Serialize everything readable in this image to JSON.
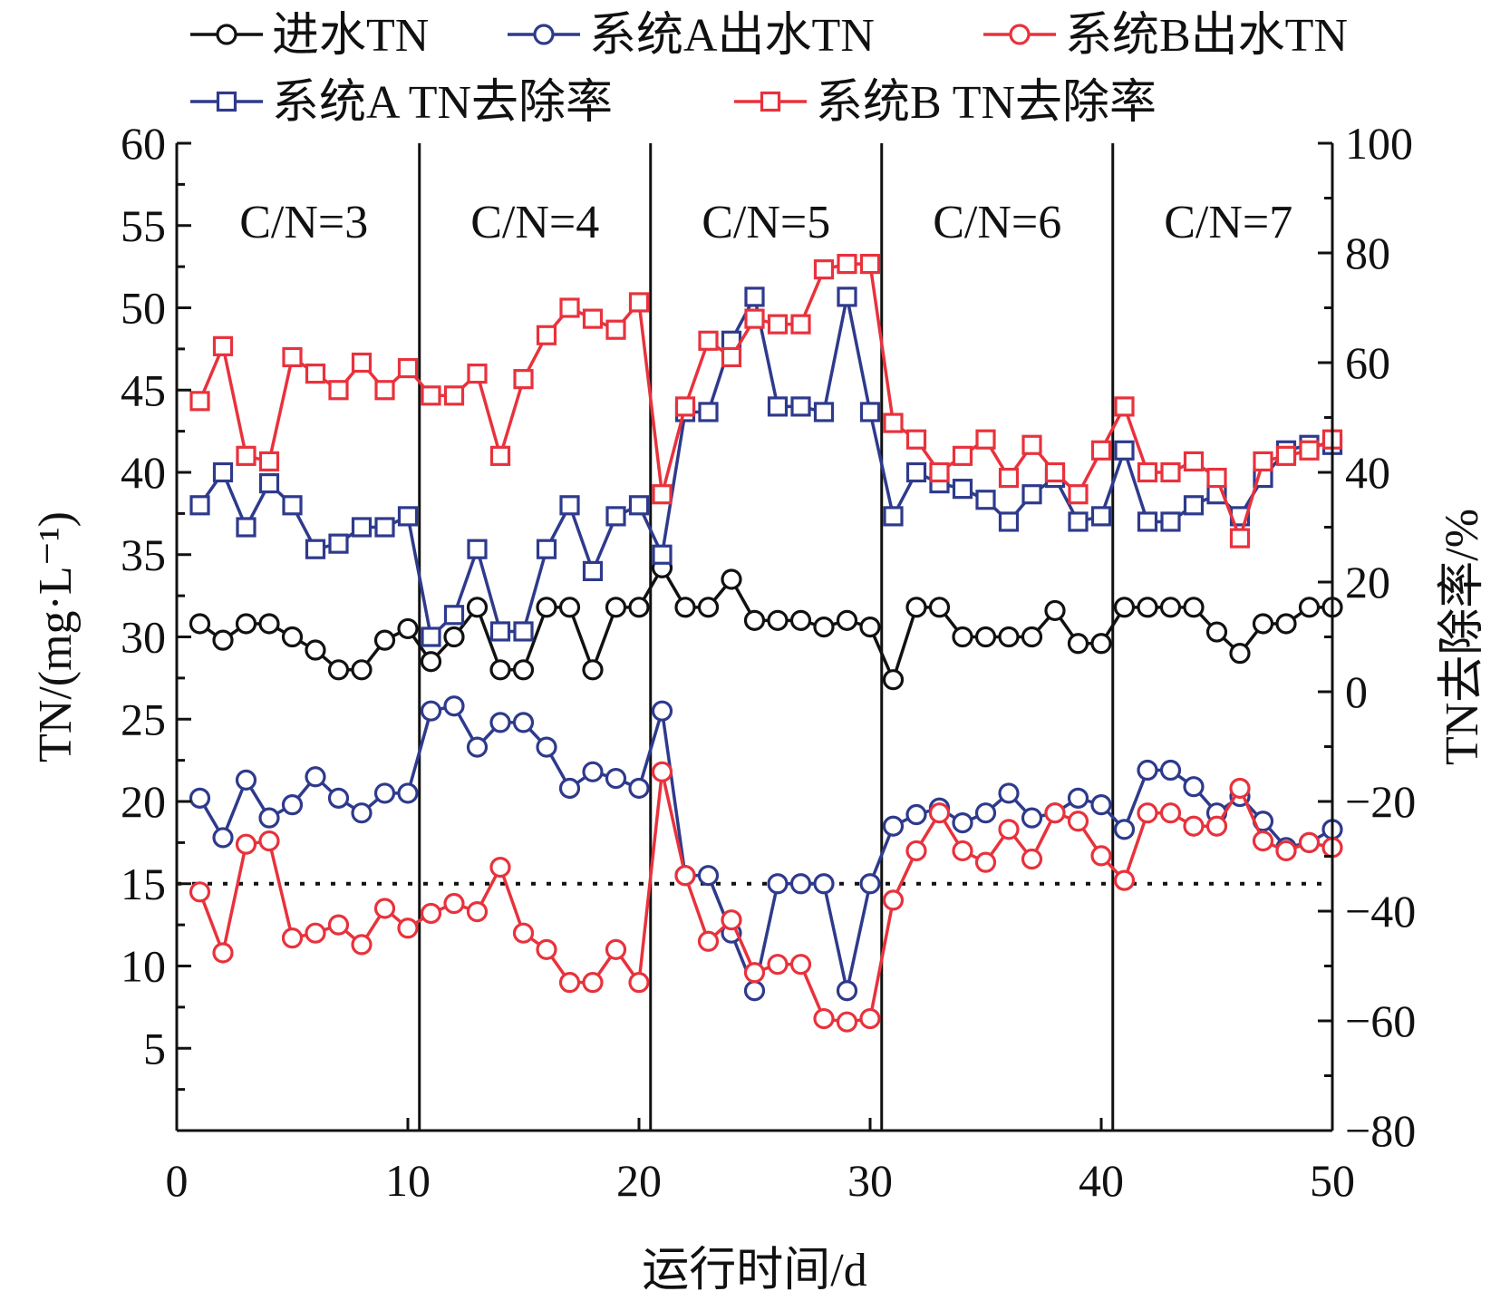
{
  "chart_data": {
    "type": "line",
    "xlabel": "运行时间/d",
    "ylabel": "TN/(mg·L⁻¹)",
    "y2label": "TN去除率/%",
    "xlim": [
      0,
      50
    ],
    "ylim": [
      0,
      60
    ],
    "y2lim": [
      -80,
      100
    ],
    "x_ticks": [
      0,
      10,
      20,
      30,
      40,
      50
    ],
    "y_ticks": [
      5,
      10,
      15,
      20,
      25,
      30,
      35,
      40,
      45,
      50,
      55,
      60
    ],
    "y2_ticks": [
      -80,
      -60,
      -40,
      -20,
      0,
      20,
      40,
      60,
      80,
      100
    ],
    "grid": false,
    "legend_position": "top",
    "reference_line": {
      "y": 15,
      "style": "dotted"
    },
    "stage_boundaries": [
      10.5,
      20.5,
      30.5,
      40.5
    ],
    "stages": [
      {
        "label": "C/N=3",
        "x_center": 5.5
      },
      {
        "label": "C/N=4",
        "x_center": 15.5
      },
      {
        "label": "C/N=5",
        "x_center": 25.5
      },
      {
        "label": "C/N=6",
        "x_center": 35.5
      },
      {
        "label": "C/N=7",
        "x_center": 45.5
      }
    ],
    "x": [
      1,
      2,
      3,
      4,
      5,
      6,
      7,
      8,
      9,
      10,
      11,
      12,
      13,
      14,
      15,
      16,
      17,
      18,
      19,
      20,
      21,
      22,
      23,
      24,
      25,
      26,
      27,
      28,
      29,
      30,
      31,
      32,
      33,
      34,
      35,
      36,
      37,
      38,
      39,
      40,
      41,
      42,
      43,
      44,
      45,
      46,
      47,
      48,
      49,
      50
    ],
    "series": [
      {
        "name": "进水TN",
        "axis": "left",
        "marker": "circle",
        "color": "#111111",
        "values": [
          30.8,
          29.8,
          30.8,
          30.8,
          30.0,
          29.2,
          28.0,
          28.0,
          29.8,
          30.5,
          28.5,
          30.0,
          31.8,
          28.0,
          28.0,
          31.8,
          31.8,
          28.0,
          31.8,
          31.8,
          34.2,
          31.8,
          31.8,
          33.5,
          31.0,
          31.0,
          31.0,
          30.6,
          31.0,
          30.6,
          27.4,
          31.8,
          31.8,
          30.0,
          30.0,
          30.0,
          30.0,
          31.6,
          29.6,
          29.6,
          31.8,
          31.8,
          31.8,
          31.8,
          30.3,
          29.0,
          30.8,
          30.8,
          31.8,
          31.8
        ]
      },
      {
        "name": "系统A出水TN",
        "axis": "left",
        "marker": "circle",
        "color": "#2e3a8c",
        "values": [
          20.2,
          17.8,
          21.3,
          19.0,
          19.8,
          21.5,
          20.2,
          19.3,
          20.5,
          20.5,
          25.5,
          25.8,
          23.3,
          24.8,
          24.8,
          23.3,
          20.8,
          21.8,
          21.4,
          20.8,
          25.5,
          15.5,
          15.5,
          12.0,
          8.5,
          15.0,
          15.0,
          15.0,
          8.5,
          15.0,
          18.5,
          19.2,
          19.6,
          18.7,
          19.3,
          20.5,
          19.0,
          19.3,
          20.2,
          19.8,
          18.3,
          21.9,
          21.9,
          20.9,
          19.3,
          20.3,
          18.8,
          17.2,
          17.5,
          18.3
        ]
      },
      {
        "name": "系统B出水TN",
        "axis": "left",
        "marker": "circle",
        "color": "#e8323c",
        "values": [
          14.5,
          10.8,
          17.4,
          17.6,
          11.7,
          12.0,
          12.5,
          11.3,
          13.5,
          12.3,
          13.2,
          13.8,
          13.3,
          16.0,
          12.0,
          11.0,
          9.0,
          9.0,
          11.0,
          9.0,
          21.8,
          15.5,
          11.5,
          12.8,
          9.6,
          10.1,
          10.1,
          6.8,
          6.6,
          6.8,
          14.0,
          17.0,
          19.3,
          17.0,
          16.3,
          18.3,
          16.5,
          19.3,
          18.8,
          16.7,
          15.2,
          19.3,
          19.3,
          18.5,
          18.5,
          20.8,
          17.6,
          17.0,
          17.5,
          17.2
        ]
      },
      {
        "name": "系统A TN去除率",
        "axis": "right",
        "marker": "square",
        "color": "#2e3a8c",
        "values": [
          34,
          40,
          30,
          38,
          34,
          26,
          27,
          30,
          30,
          32,
          10,
          14,
          26,
          11,
          11,
          26,
          34,
          22,
          32,
          34,
          25,
          51,
          51,
          64,
          72,
          52,
          52,
          51,
          72,
          51,
          32,
          40,
          38,
          37,
          35,
          31,
          36,
          39,
          31,
          32,
          44,
          31,
          31,
          34,
          36,
          32,
          39,
          44,
          45,
          45
        ]
      },
      {
        "name": "系统B TN去除率",
        "axis": "right",
        "marker": "square",
        "color": "#e8323c",
        "values": [
          53,
          63,
          43,
          42,
          61,
          58,
          55,
          60,
          55,
          59,
          54,
          54,
          58,
          43,
          57,
          65,
          70,
          68,
          66,
          71,
          36,
          52,
          64,
          61,
          68,
          67,
          67,
          77,
          78,
          78,
          49,
          46,
          40,
          43,
          46,
          39,
          45,
          40,
          36,
          44,
          52,
          40,
          40,
          42,
          39,
          28,
          42,
          43,
          44,
          46
        ]
      }
    ]
  }
}
